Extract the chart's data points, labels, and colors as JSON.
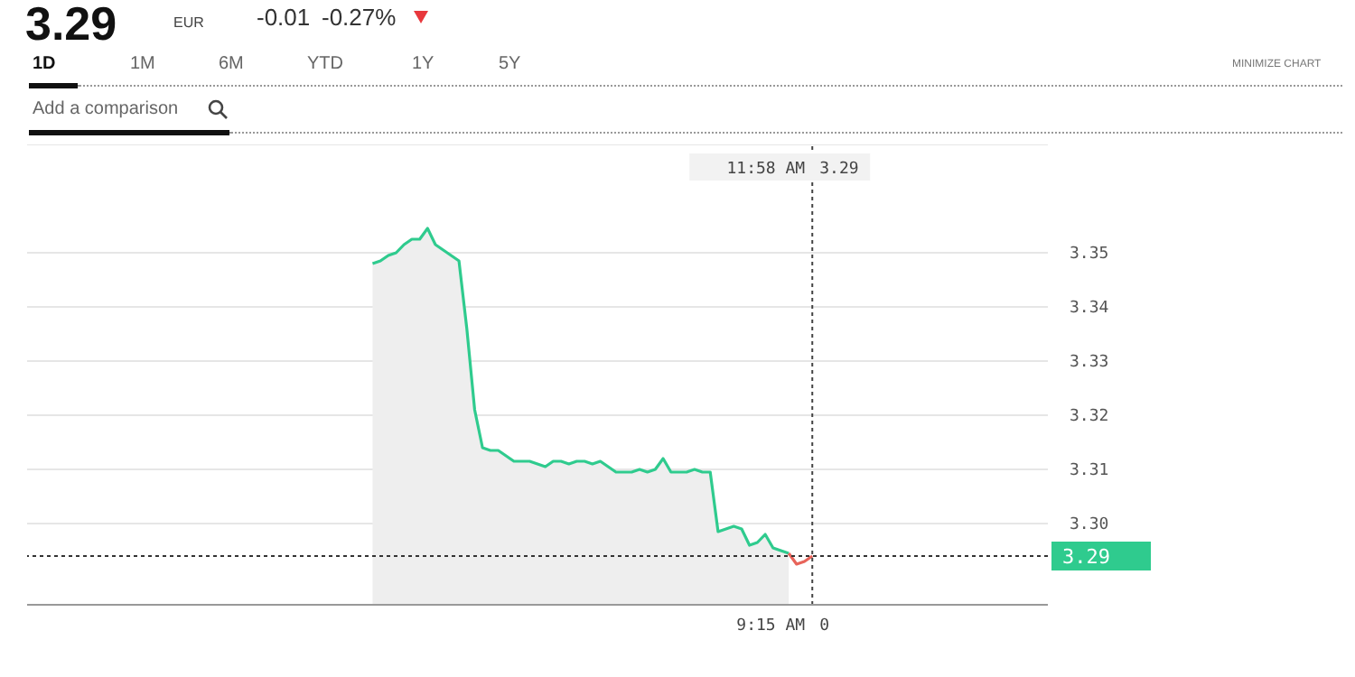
{
  "chart_data": {
    "type": "area",
    "title": "3.29",
    "subtitle": "EUR",
    "annotations": [
      "-0.01",
      "-0.27%",
      "1D",
      "1M",
      "6M",
      "YTD",
      "1Y",
      "5Y",
      "MINIMIZE CHART",
      "Add a comparison",
      "3.29",
      "9:15 AM",
      "0",
      "11:58 AM"
    ],
    "categories": [
      null,
      null,
      null,
      null,
      null,
      null,
      null,
      null,
      null,
      null,
      null,
      null,
      null,
      null,
      null,
      null,
      null,
      null,
      null,
      null,
      null,
      null,
      null,
      null,
      null,
      null,
      null,
      null,
      null,
      null,
      null,
      null,
      null,
      null,
      null,
      null,
      null,
      null,
      null,
      null,
      null,
      null,
      null,
      null,
      null,
      null,
      null,
      null,
      null,
      null,
      null,
      null,
      null,
      null,
      null,
      null,
      null,
      null,
      null,
      null,
      null,
      null,
      null,
      null,
      null,
      null,
      null,
      null,
      null,
      null,
      null,
      null,
      null,
      null,
      null,
      null,
      null,
      null,
      null,
      null,
      null,
      null,
      null,
      null,
      null,
      null,
      null,
      null,
      null,
      null,
      null,
      null,
      null,
      null,
      null,
      null,
      null,
      null,
      null,
      null,
      null,
      null,
      null,
      null,
      null,
      null,
      null,
      null,
      null,
      null,
      null,
      null,
      null,
      null,
      null,
      null,
      null,
      null,
      null,
      null,
      null,
      null,
      null,
      null,
      null,
      null,
      null,
      null,
      null,
      null,
      null
    ],
    "series": [
      {
        "color": "#2fcb8e",
        "values": [
          null,
          null,
          null,
          null,
          null,
          null,
          null,
          null,
          null,
          null,
          null,
          null,
          null,
          null,
          null,
          null,
          null,
          null,
          null,
          null,
          null,
          null,
          null,
          null,
          null,
          null,
          null,
          null,
          null,
          null,
          null,
          null,
          null,
          null,
          null,
          null,
          null,
          null,
          null,
          null,
          null,
          null,
          null,
          null,
          3.348,
          3.3485,
          3.3495,
          3.35,
          3.3515,
          3.3525,
          3.3525,
          3.3545,
          3.3515,
          3.3505,
          3.3495,
          3.3485,
          3.336,
          3.321,
          3.314,
          3.3135,
          3.3135,
          3.3125,
          3.3115,
          3.3115,
          3.3115,
          3.311,
          3.3105,
          3.3115,
          3.3115,
          3.311,
          3.3115,
          3.3115,
          3.311,
          3.3115,
          3.3105,
          3.3095,
          3.3095,
          3.3095,
          3.31,
          3.3095,
          3.31,
          3.312,
          3.3095,
          3.3095,
          3.3095,
          3.31,
          3.3095,
          3.3095,
          3.2985,
          3.299,
          3.2995,
          3.299,
          3.296,
          3.2965,
          3.298,
          3.2955,
          3.295,
          3.2945,
          null,
          null,
          null,
          null,
          null,
          null,
          null,
          null,
          null,
          null,
          null,
          null,
          null,
          null,
          null,
          null,
          null,
          null,
          null,
          null,
          null,
          null,
          null,
          null,
          null,
          null,
          null,
          null,
          null,
          null,
          null,
          null,
          null
        ]
      },
      {
        "type": "line",
        "color": "#e8645a",
        "values": [
          null,
          null,
          null,
          null,
          null,
          null,
          null,
          null,
          null,
          null,
          null,
          null,
          null,
          null,
          null,
          null,
          null,
          null,
          null,
          null,
          null,
          null,
          null,
          null,
          null,
          null,
          null,
          null,
          null,
          null,
          null,
          null,
          null,
          null,
          null,
          null,
          null,
          null,
          null,
          null,
          null,
          null,
          null,
          null,
          null,
          null,
          null,
          null,
          null,
          null,
          null,
          null,
          null,
          null,
          null,
          null,
          null,
          null,
          null,
          null,
          null,
          null,
          null,
          null,
          null,
          null,
          null,
          null,
          null,
          null,
          null,
          null,
          null,
          null,
          null,
          null,
          null,
          null,
          null,
          null,
          null,
          null,
          null,
          null,
          null,
          null,
          null,
          null,
          null,
          null,
          null,
          null,
          null,
          null,
          null,
          null,
          null,
          3.2945,
          3.2925,
          3.293,
          3.294,
          null,
          null,
          null,
          null,
          null,
          null,
          null,
          null,
          null,
          null,
          null,
          null,
          null,
          null,
          null,
          null,
          null,
          null,
          null,
          null,
          null,
          null,
          null,
          null,
          null,
          null,
          null,
          null,
          null,
          null
        ]
      }
    ],
    "ylim": [
      3.285,
      3.37
    ],
    "yticks": [
      3.35,
      3.34,
      3.33,
      3.32,
      3.31,
      {
        "value": 3.3,
        "label": "3.30"
      }
    ],
    "ref_lines": [
      {
        "axis": "y",
        "value": 3.294,
        "label": "3.29",
        "line_style": "dotted",
        "color": "#333333"
      }
    ],
    "grid": "y",
    "tick_labels": "y",
    "legend": false,
    "marker": "none"
  }
}
